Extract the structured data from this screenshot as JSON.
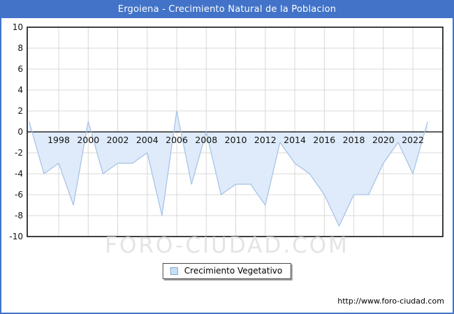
{
  "window": {
    "title": "Ergoiena - Crecimiento Natural de la Poblacion"
  },
  "chart_data": {
    "type": "area",
    "title": "Ergoiena - Crecimiento Natural de la Poblacion",
    "x": [
      1996,
      1997,
      1998,
      1999,
      2000,
      2001,
      2002,
      2003,
      2004,
      2005,
      2006,
      2007,
      2008,
      2009,
      2010,
      2011,
      2012,
      2013,
      2014,
      2015,
      2016,
      2017,
      2018,
      2019,
      2020,
      2021,
      2022,
      2023
    ],
    "series": [
      {
        "name": "Crecimiento Vegetativo",
        "values": [
          1,
          -4,
          -3,
          -7,
          1,
          -4,
          -3,
          -3,
          -2,
          -8,
          2,
          -5,
          0,
          -6,
          -5,
          -5,
          -7,
          -1,
          -3,
          -4,
          -6,
          -9,
          -6,
          -6,
          -3,
          -1,
          -4,
          1
        ]
      }
    ],
    "ylim": [
      -10,
      10
    ],
    "y_ticks": [
      10,
      8,
      6,
      4,
      2,
      0,
      -2,
      -4,
      -6,
      -8,
      -10
    ],
    "x_ticks": [
      1998,
      2000,
      2002,
      2004,
      2006,
      2008,
      2010,
      2012,
      2014,
      2016,
      2018,
      2020,
      2022
    ],
    "grid": true,
    "legend_position": "bottom-center"
  },
  "legend": {
    "label": "Crecimiento Vegetativo"
  },
  "watermark": {
    "text": "FORO-CIUDAD.COM"
  },
  "footer": {
    "url": "http://www.foro-ciudad.com"
  },
  "colors": {
    "titlebar": "#4273C8",
    "line": "#A3C1E6",
    "fill": "#DFEBFA",
    "grid": "#D8D8D8",
    "zero_axis": "#000000",
    "plot_border": "#000000",
    "tick_text": "#111111",
    "watermark": "#E4E4E6"
  }
}
